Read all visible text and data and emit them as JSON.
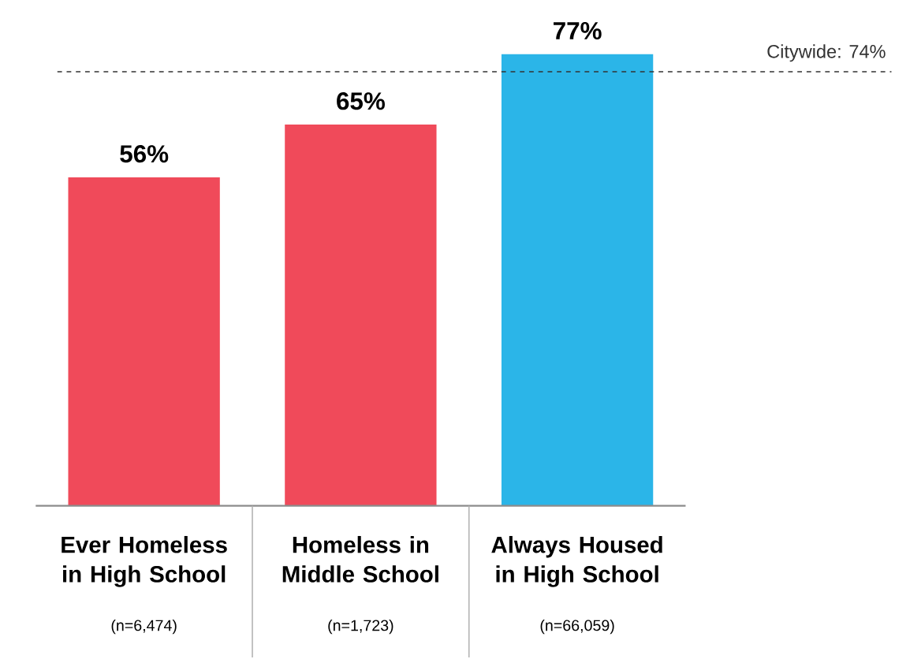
{
  "chart_data": {
    "type": "bar",
    "categories": [
      "Ever Homeless in High School",
      "Homeless in Middle School",
      "Always Housed in High School"
    ],
    "values": [
      56,
      65,
      77
    ],
    "colors": [
      "#f04a5a",
      "#f04a5a",
      "#2bb5e8"
    ],
    "value_labels": [
      "56%",
      "65%",
      "77%"
    ],
    "ref_lines": [
      {
        "axis": "y",
        "value": 74,
        "label": "Citywide: 74%",
        "color": "#333333",
        "line_style": "dashed"
      }
    ],
    "annotations": [
      "(n=6,474)",
      "(n=1,723)",
      "(n=66,059)"
    ]
  }
}
